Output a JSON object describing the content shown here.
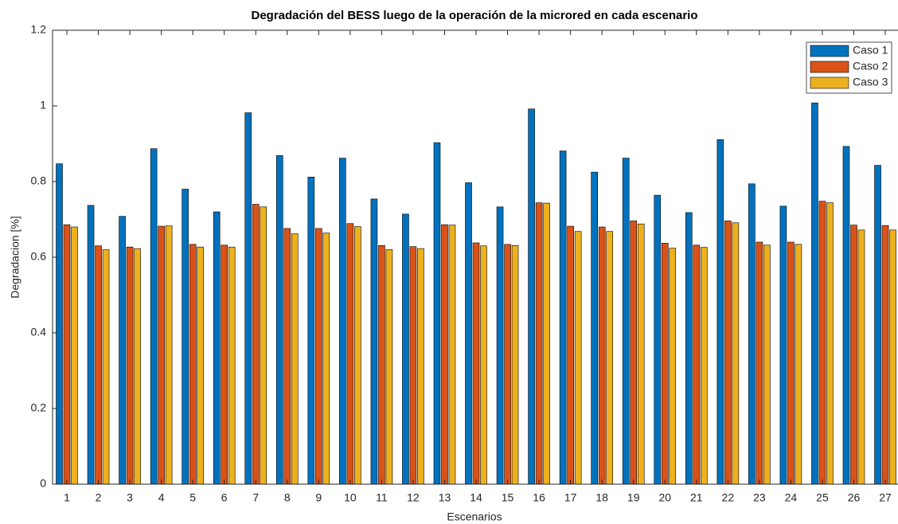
{
  "chart_data": {
    "type": "bar",
    "title": "Degradación del BESS luego de la operación de la microred en cada escenario",
    "x_label": "Escenarios",
    "y_label": "Degradacion [%]",
    "categories": [
      "1",
      "2",
      "3",
      "4",
      "5",
      "6",
      "7",
      "8",
      "9",
      "10",
      "11",
      "12",
      "13",
      "14",
      "15",
      "16",
      "17",
      "18",
      "19",
      "20",
      "21",
      "22",
      "23",
      "24",
      "25",
      "26",
      "27"
    ],
    "series": [
      {
        "name": "Caso 1",
        "color": "#0072bd",
        "values": [
          0.847,
          0.737,
          0.708,
          0.887,
          0.78,
          0.72,
          0.982,
          0.869,
          0.812,
          0.862,
          0.754,
          0.714,
          0.903,
          0.797,
          0.733,
          0.992,
          0.881,
          0.825,
          0.862,
          0.764,
          0.718,
          0.911,
          0.794,
          0.735,
          1.008,
          0.893,
          0.843
        ]
      },
      {
        "name": "Caso 2",
        "color": "#d95319",
        "values": [
          0.686,
          0.63,
          0.627,
          0.682,
          0.634,
          0.632,
          0.74,
          0.676,
          0.676,
          0.689,
          0.631,
          0.628,
          0.686,
          0.638,
          0.634,
          0.744,
          0.682,
          0.68,
          0.696,
          0.637,
          0.632,
          0.696,
          0.64,
          0.64,
          0.748,
          0.685,
          0.684
        ]
      },
      {
        "name": "Caso 3",
        "color": "#edb120",
        "values": [
          0.68,
          0.62,
          0.623,
          0.683,
          0.627,
          0.627,
          0.733,
          0.662,
          0.664,
          0.681,
          0.62,
          0.623,
          0.685,
          0.63,
          0.631,
          0.743,
          0.668,
          0.668,
          0.688,
          0.624,
          0.626,
          0.691,
          0.632,
          0.634,
          0.744,
          0.672,
          0.672
        ]
      }
    ],
    "ylim": [
      0,
      1.2
    ],
    "yticks": [
      0,
      0.2,
      0.4,
      0.6,
      0.8,
      1,
      1.2
    ],
    "legend": "northeast"
  }
}
